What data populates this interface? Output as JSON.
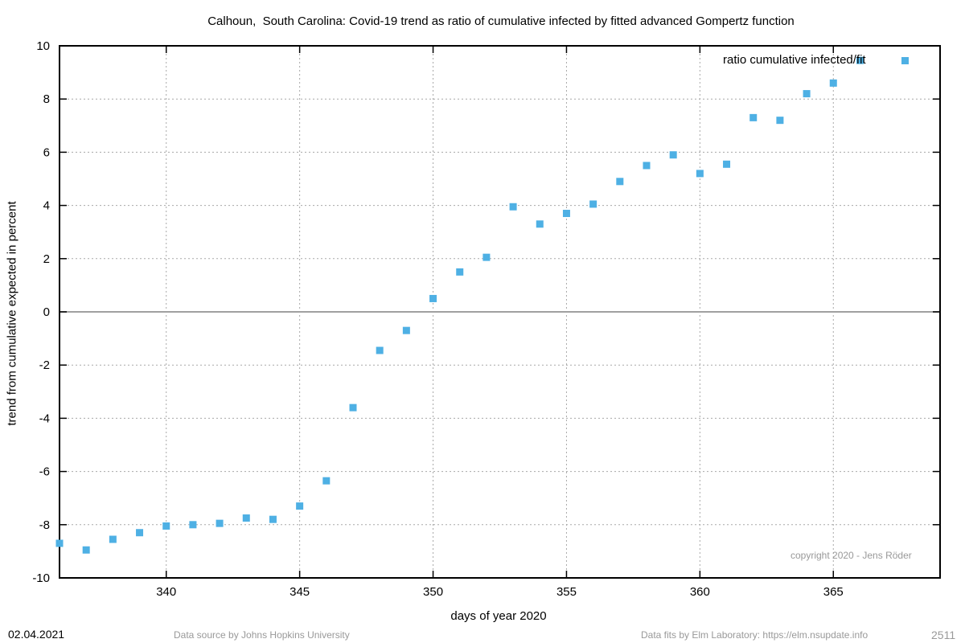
{
  "chart_data": {
    "type": "scatter",
    "title": "Calhoun,  South Carolina: Covid-19 trend as ratio of cumulative infected by fitted advanced Gompertz function",
    "xlabel": "days of year 2020",
    "ylabel": "trend from cumulative expected in percent",
    "xlim": [
      336,
      369
    ],
    "ylim": [
      -10,
      10
    ],
    "x_ticks": [
      340,
      345,
      350,
      355,
      360,
      365
    ],
    "y_ticks": [
      10,
      8,
      6,
      4,
      2,
      0,
      -2,
      -4,
      -6,
      -8,
      -10
    ],
    "grid": true,
    "legend_position": "top-right",
    "series": [
      {
        "name": "ratio cumulative infected/fit",
        "color": "#4eb0e4",
        "x": [
          336,
          337,
          338,
          339,
          340,
          341,
          342,
          343,
          344,
          345,
          346,
          347,
          348,
          349,
          350,
          351,
          352,
          353,
          354,
          355,
          356,
          357,
          358,
          359,
          360,
          361,
          362,
          363,
          364,
          365,
          366
        ],
        "y": [
          -8.7,
          -8.95,
          -8.55,
          -8.3,
          -8.05,
          -8.0,
          -7.95,
          -7.75,
          -7.8,
          -7.3,
          -6.35,
          -3.6,
          -1.45,
          -0.7,
          0.5,
          1.5,
          2.05,
          3.95,
          3.3,
          3.7,
          4.05,
          4.9,
          5.5,
          5.9,
          5.2,
          5.55,
          7.3,
          7.2,
          8.2,
          8.6,
          9.45
        ]
      }
    ],
    "zero_line_color": "#a0a0a0"
  },
  "copyright": "copyright 2020 - Jens Röder",
  "footer": {
    "date": "02.04.2021",
    "source": "Data source by Johns Hopkins University",
    "fits": "Data fits by Elm Laboratory: https://elm.nsupdate.info",
    "id": "2511"
  }
}
